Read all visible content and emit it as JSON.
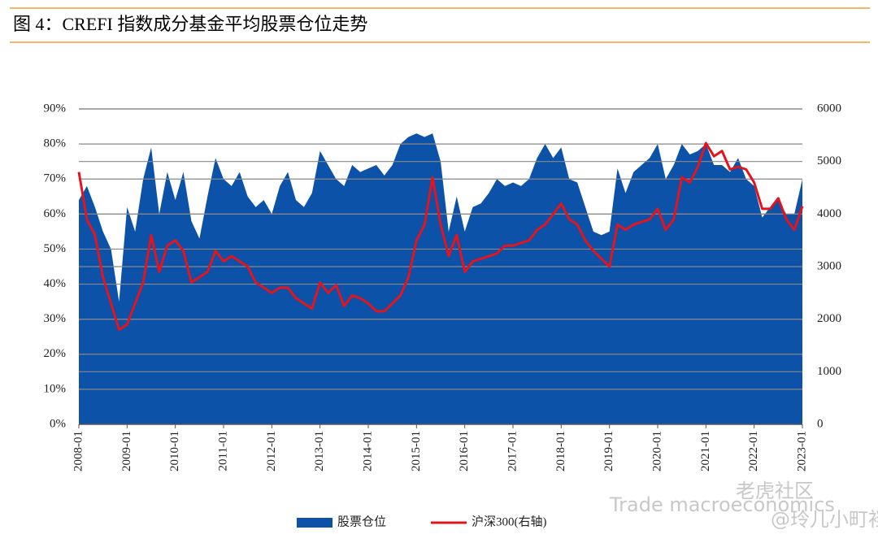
{
  "chart_data": {
    "type": "area-line",
    "title": "图 4：CREFI 指数成分基金平均股票仓位走势",
    "x": [
      "2008-01",
      null,
      null,
      null,
      null,
      null,
      "2009-01",
      null,
      null,
      null,
      null,
      null,
      "2010-01",
      null,
      null,
      null,
      null,
      null,
      "2011-01",
      null,
      null,
      null,
      null,
      null,
      "2012-01",
      null,
      null,
      null,
      null,
      null,
      "2013-01",
      null,
      null,
      null,
      null,
      null,
      "2014-01",
      null,
      null,
      null,
      null,
      null,
      "2015-01",
      null,
      null,
      null,
      null,
      null,
      "2016-01",
      null,
      null,
      null,
      null,
      null,
      "2017-01",
      null,
      null,
      null,
      null,
      null,
      "2018-01",
      null,
      null,
      null,
      null,
      null,
      "2019-01",
      null,
      null,
      null,
      null,
      null,
      "2020-01",
      null,
      null,
      null,
      null,
      null,
      "2021-01",
      null,
      null,
      null,
      null,
      null,
      "2022-01",
      null,
      null,
      null,
      null,
      null,
      "2023-01"
    ],
    "series": [
      {
        "name": "股票仓位",
        "color": "#0b52a8",
        "kind": "area",
        "values": [
          64,
          68,
          62,
          55,
          50,
          35,
          62,
          55,
          70,
          79,
          60,
          72,
          64,
          72,
          58,
          53,
          65,
          76,
          70,
          68,
          72,
          65,
          62,
          64,
          60,
          68,
          72,
          64,
          62,
          66,
          78,
          74,
          70,
          68,
          74,
          72,
          73,
          74,
          71,
          74,
          80,
          82,
          83,
          82,
          83,
          75,
          55,
          65,
          55,
          62,
          63,
          66,
          70,
          68,
          69,
          68,
          70,
          76,
          80,
          76,
          79,
          70,
          69,
          62,
          55,
          54,
          55,
          73,
          66,
          72,
          74,
          76,
          80,
          70,
          74,
          80,
          77,
          78,
          80,
          74,
          74,
          72,
          76,
          70,
          68,
          59,
          62,
          64,
          60,
          60,
          70
        ]
      },
      {
        "name": "沪深300(右轴)",
        "color": "#e3141d",
        "kind": "line",
        "axis": "y2",
        "values": [
          4800,
          3900,
          3600,
          2800,
          2300,
          1800,
          1900,
          2300,
          2700,
          3600,
          2900,
          3400,
          3500,
          3300,
          2700,
          2800,
          2900,
          3300,
          3100,
          3200,
          3100,
          3000,
          2700,
          2600,
          2500,
          2600,
          2600,
          2400,
          2300,
          2200,
          2700,
          2500,
          2650,
          2250,
          2450,
          2400,
          2300,
          2150,
          2150,
          2300,
          2450,
          2800,
          3500,
          3800,
          4700,
          3800,
          3200,
          3600,
          2900,
          3100,
          3150,
          3200,
          3250,
          3400,
          3400,
          3450,
          3500,
          3700,
          3800,
          4000,
          4200,
          3900,
          3800,
          3500,
          3300,
          3150,
          3000,
          3800,
          3700,
          3800,
          3850,
          3900,
          4100,
          3700,
          3900,
          4700,
          4600,
          4900,
          5350,
          5100,
          5200,
          4850,
          4900,
          4850,
          4600,
          4100,
          4100,
          4300,
          3900,
          3700,
          4150
        ]
      }
    ],
    "ylim": [
      0,
      90
    ],
    "yticks": [
      {
        "value": 0,
        "label": "0%"
      },
      {
        "value": 10,
        "label": "10%"
      },
      {
        "value": 20,
        "label": "20%"
      },
      {
        "value": 30,
        "label": "30%"
      },
      {
        "value": 40,
        "label": "40%"
      },
      {
        "value": 50,
        "label": "50%"
      },
      {
        "value": 60,
        "label": "60%"
      },
      {
        "value": 70,
        "label": "70%"
      },
      {
        "value": 80,
        "label": "80%"
      },
      {
        "value": 90,
        "label": "90%"
      }
    ],
    "y2lim": [
      0,
      6000
    ],
    "y2ticks": [
      0,
      1000,
      2000,
      3000,
      4000,
      5000,
      6000
    ],
    "grid": true,
    "legend": "bottom",
    "watermarks": [
      "Trade macroeconomics",
      "老虎社区",
      "@玲儿小町裆"
    ]
  }
}
